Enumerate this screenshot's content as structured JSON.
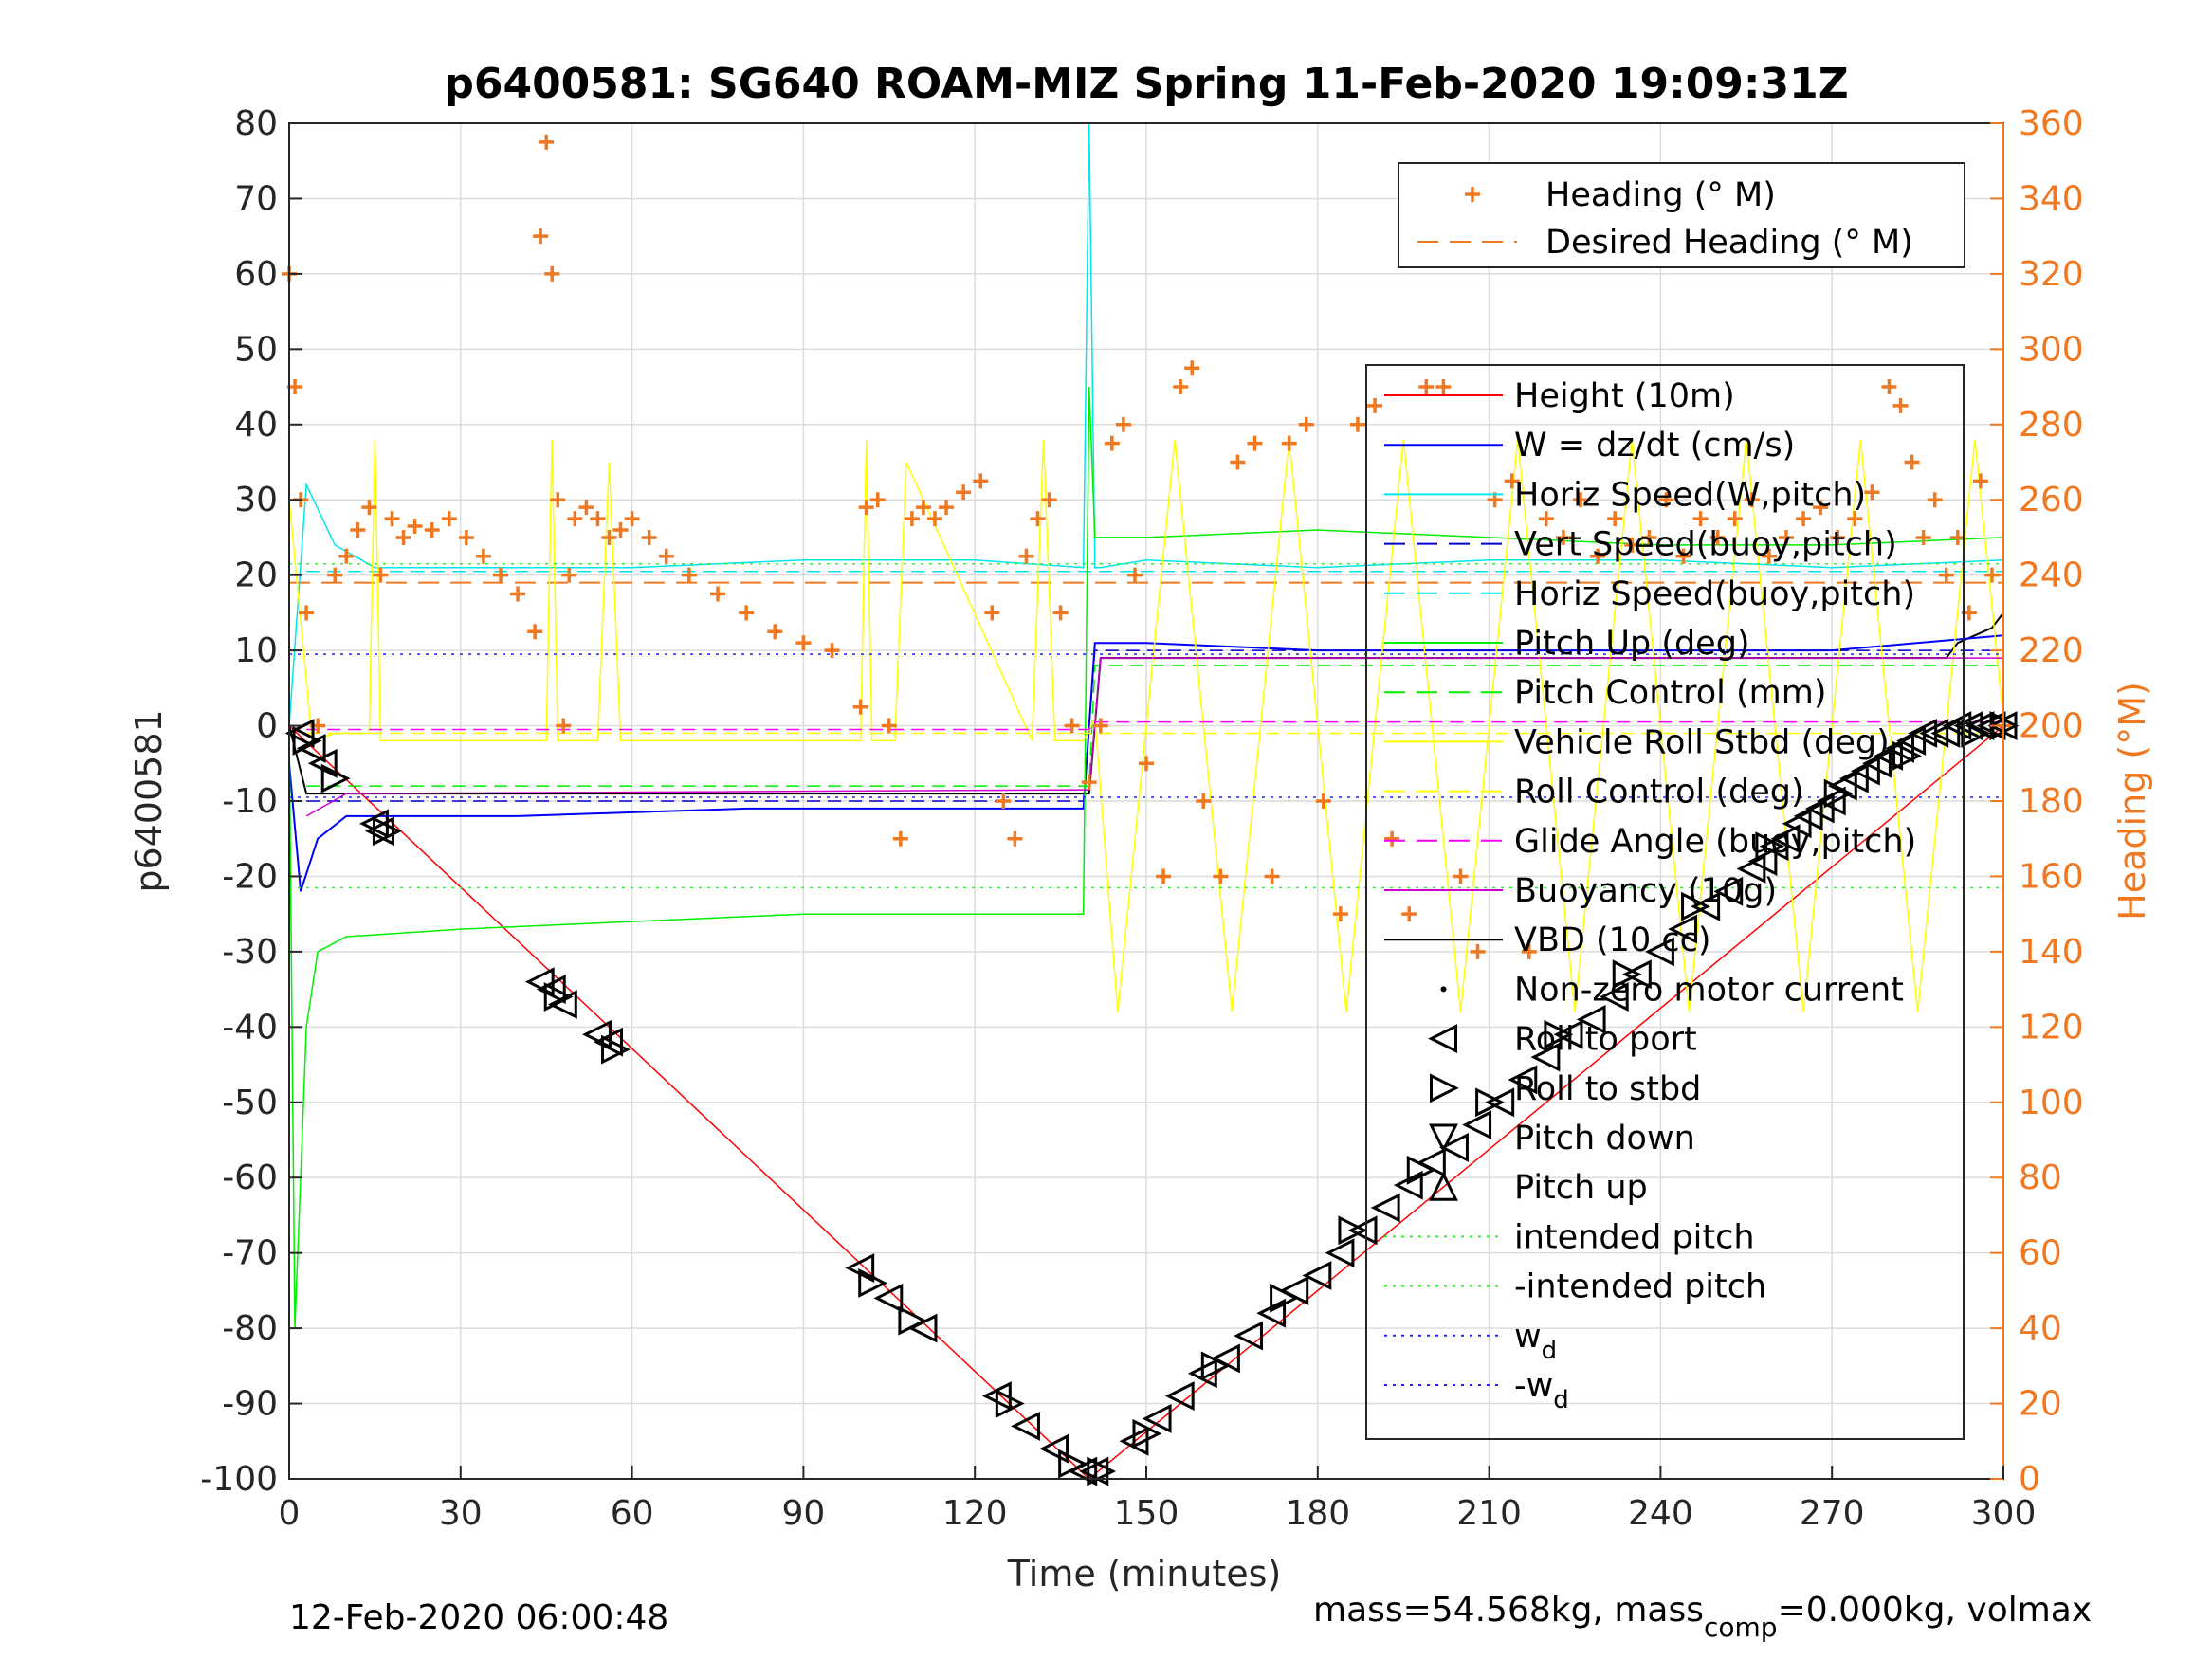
{
  "chart_data": {
    "type": "line",
    "title": "p6400581: SG640 ROAM-MIZ Spring 11-Feb-2020 19:09:31Z",
    "xlabel": "Time (minutes)",
    "ylabel_left": "p6400581",
    "ylabel_right": "Heading (°M)",
    "xlim": [
      0,
      300
    ],
    "ylim_left": [
      -100,
      80
    ],
    "ylim_right": [
      0,
      360
    ],
    "xticks": [
      0,
      30,
      60,
      90,
      120,
      150,
      180,
      210,
      240,
      270,
      300
    ],
    "yticks_left": [
      -100,
      -90,
      -80,
      -70,
      -60,
      -50,
      -40,
      -30,
      -20,
      -10,
      0,
      10,
      20,
      30,
      40,
      50,
      60,
      70,
      80
    ],
    "yticks_right": [
      0,
      20,
      40,
      60,
      80,
      100,
      120,
      140,
      160,
      180,
      200,
      220,
      240,
      260,
      280,
      300,
      320,
      340,
      360
    ],
    "grid": true,
    "footer_left": "12-Feb-2020 06:00:48",
    "footer_right_parts": [
      "mass=54.568kg, mass",
      "comp",
      "=0.000kg, volmax"
    ],
    "legend_heading": [
      {
        "name": "Heading (° M)",
        "color": "#f07820",
        "style": "plus"
      },
      {
        "name": "Desired Heading (° M)",
        "color": "#f07820",
        "style": "dash"
      }
    ],
    "legend_main": [
      {
        "name": "Height (10m)",
        "color": "#ff0000",
        "style": "line"
      },
      {
        "name": "W = dz/dt (cm/s)",
        "color": "#0000ff",
        "style": "line"
      },
      {
        "name": "Horiz Speed(W,pitch)",
        "color": "#00e5ee",
        "style": "line"
      },
      {
        "name": "Vert Speed(buoy,pitch)",
        "color": "#0000cc",
        "style": "dash"
      },
      {
        "name": "Horiz Speed(buoy,pitch)",
        "color": "#00e5ee",
        "style": "dash"
      },
      {
        "name": "Pitch Up (deg)",
        "color": "#00ee00",
        "style": "line"
      },
      {
        "name": "Pitch Control (mm)",
        "color": "#00ee00",
        "style": "dash"
      },
      {
        "name": "Vehicle Roll Stbd (deg)",
        "color": "#ffff00",
        "style": "line"
      },
      {
        "name": "Roll Control (deg)",
        "color": "#ffff00",
        "style": "dash"
      },
      {
        "name": "Glide Angle (buoy,pitch)",
        "color": "#ff00ff",
        "style": "dash"
      },
      {
        "name": "Buoyancy (10g)",
        "color": "#cc00cc",
        "style": "line"
      },
      {
        "name": "VBD (10 cc)",
        "color": "#000000",
        "style": "line"
      },
      {
        "name": "Non-zero motor current",
        "color": "#000000",
        "style": "dot"
      },
      {
        "name": "Roll to port",
        "color": "#000000",
        "style": "tri-left"
      },
      {
        "name": "Roll to stbd",
        "color": "#000000",
        "style": "tri-right"
      },
      {
        "name": "Pitch down",
        "color": "#000000",
        "style": "tri-down"
      },
      {
        "name": "Pitch up",
        "color": "#000000",
        "style": "tri-up"
      },
      {
        "name": "intended pitch",
        "color": "#33ee33",
        "style": "dot-line"
      },
      {
        "name": "-intended pitch",
        "color": "#33ee33",
        "style": "dot-line"
      },
      {
        "name": "w",
        "sub": "d",
        "color": "#2222ee",
        "style": "dot-line"
      },
      {
        "name": "-w",
        "sub": "d",
        "color": "#2222ee",
        "style": "dot-line"
      }
    ],
    "series": [
      {
        "name": "Height (10m)",
        "color": "#ff0000",
        "width": 1.5,
        "x": [
          0,
          140,
          300
        ],
        "y": [
          0,
          -100,
          0
        ]
      },
      {
        "name": "VBD (10 cc)",
        "color": "#000000",
        "width": 2,
        "x": [
          0,
          3,
          140,
          142,
          290,
          292,
          298,
          300
        ],
        "y": [
          0,
          -9,
          -9,
          9,
          9,
          11,
          13,
          15
        ]
      },
      {
        "name": "W = dz/dt (cm/s)",
        "color": "#0000ff",
        "width": 2,
        "x": [
          0,
          2,
          5,
          10,
          20,
          40,
          60,
          80,
          100,
          120,
          139,
          141,
          150,
          180,
          210,
          240,
          270,
          300
        ],
        "y": [
          -5,
          -22,
          -15,
          -12,
          -12,
          -12,
          -11.5,
          -11,
          -11,
          -11,
          -11,
          11,
          11,
          10,
          10,
          10,
          10,
          12
        ]
      },
      {
        "name": "Vert Speed(buoy,pitch)",
        "color": "#0000cc",
        "width": 1.5,
        "dash": "14,8",
        "x": [
          3,
          139,
          141,
          300
        ],
        "y": [
          -10,
          -10,
          10,
          10
        ]
      },
      {
        "name": "Horiz Speed(W,pitch)",
        "color": "#00e5ee",
        "width": 1.5,
        "x": [
          0,
          3,
          8,
          15,
          30,
          60,
          90,
          120,
          139,
          140,
          141,
          142,
          150,
          180,
          210,
          240,
          270,
          300
        ],
        "y": [
          0,
          32,
          24,
          21,
          21,
          21,
          22,
          22,
          21,
          80,
          21,
          21,
          22,
          21,
          22,
          22,
          21,
          22
        ]
      },
      {
        "name": "Horiz Speed(buoy,pitch)",
        "color": "#00e5ee",
        "width": 1.5,
        "dash": "14,8",
        "x": [
          3,
          300
        ],
        "y": [
          20.5,
          20.5
        ]
      },
      {
        "name": "Pitch Up (deg)",
        "color": "#00ee00",
        "width": 1.5,
        "x": [
          0,
          1,
          3,
          5,
          10,
          30,
          60,
          90,
          120,
          139,
          140,
          141,
          142,
          150,
          180,
          210,
          240,
          270,
          300
        ],
        "y": [
          0,
          -80,
          -40,
          -30,
          -28,
          -27,
          -26,
          -25,
          -25,
          -25,
          45,
          25,
          25,
          25,
          26,
          25,
          24,
          24,
          25
        ]
      },
      {
        "name": "Pitch Control (mm)",
        "color": "#00ee00",
        "width": 1.5,
        "dash": "14,8",
        "x": [
          3,
          140,
          141,
          300
        ],
        "y": [
          -8,
          -8,
          8,
          8
        ]
      },
      {
        "name": "Vehicle Roll Stbd (deg)",
        "color": "#ffff00",
        "width": 1.5,
        "x": [
          0,
          4,
          8,
          14,
          15,
          16,
          45,
          46,
          47,
          54,
          56,
          58,
          100,
          101,
          102,
          106,
          108,
          130,
          132,
          134,
          139,
          141,
          145,
          155,
          165,
          175,
          185,
          195,
          205,
          215,
          225,
          235,
          245,
          255,
          265,
          275,
          285,
          295,
          300
        ],
        "y": [
          30,
          -2,
          -1,
          -1,
          38,
          -2,
          -2,
          38,
          -2,
          -2,
          35,
          -2,
          -2,
          38,
          -2,
          -2,
          35,
          -2,
          38,
          -2,
          -2,
          1,
          -38,
          38,
          -38,
          38,
          -38,
          38,
          -38,
          38,
          -38,
          38,
          -38,
          38,
          -38,
          38,
          -38,
          38,
          1
        ]
      },
      {
        "name": "Roll Control (deg)",
        "color": "#ffff00",
        "width": 1.5,
        "dash": "14,8",
        "x": [
          3,
          300
        ],
        "y": [
          -1,
          -1
        ]
      },
      {
        "name": "Glide Angle (buoy,pitch)",
        "color": "#ff00ff",
        "width": 1.5,
        "dash": "14,8",
        "x": [
          3,
          140,
          141,
          300
        ],
        "y": [
          -0.5,
          -0.5,
          0.5,
          0.5
        ]
      },
      {
        "name": "Buoyancy (10g)",
        "color": "#cc00cc",
        "width": 1.5,
        "x": [
          3,
          10,
          140,
          142,
          300
        ],
        "y": [
          -12,
          -9,
          -8.5,
          9,
          9
        ]
      },
      {
        "name": "intended pitch",
        "color": "#33ee33",
        "width": 1.5,
        "dash": "3,6",
        "x": [
          0,
          300
        ],
        "y": [
          21.5,
          21.5
        ]
      },
      {
        "name": "-intended pitch",
        "color": "#33ee33",
        "width": 1.5,
        "dash": "3,6",
        "x": [
          0,
          300
        ],
        "y": [
          -21.5,
          -21.5
        ]
      },
      {
        "name": "w_d",
        "color": "#2222ee",
        "width": 1.5,
        "dash": "3,6",
        "x": [
          0,
          300
        ],
        "y": [
          9.5,
          9.5
        ]
      },
      {
        "name": "-w_d",
        "color": "#2222ee",
        "width": 1.5,
        "dash": "3,6",
        "x": [
          0,
          300
        ],
        "y": [
          -9.5,
          -9.5
        ]
      }
    ],
    "desired_heading_deg": 238,
    "heading_deg": {
      "x": [
        0,
        1,
        2,
        3,
        5,
        8,
        10,
        12,
        14,
        16,
        18,
        20,
        22,
        25,
        28,
        31,
        34,
        37,
        40,
        43,
        44,
        45,
        46,
        47,
        48,
        49,
        50,
        52,
        54,
        56,
        58,
        60,
        63,
        66,
        70,
        75,
        80,
        85,
        90,
        95,
        100,
        101,
        103,
        105,
        107,
        109,
        111,
        113,
        115,
        118,
        121,
        123,
        125,
        127,
        129,
        131,
        133,
        135,
        137,
        140,
        142,
        144,
        146,
        148,
        150,
        153,
        156,
        158,
        160,
        163,
        166,
        169,
        172,
        175,
        178,
        181,
        184,
        187,
        190,
        193,
        196,
        199,
        202,
        205,
        208,
        211,
        214,
        217,
        220,
        223,
        226,
        229,
        232,
        235,
        238,
        241,
        244,
        247,
        250,
        253,
        256,
        259,
        262,
        265,
        268,
        271,
        274,
        277,
        280,
        282,
        284,
        286,
        288,
        290,
        292,
        294,
        296,
        298,
        300
      ],
      "y": [
        320,
        290,
        260,
        230,
        200,
        240,
        245,
        252,
        258,
        240,
        255,
        250,
        253,
        252,
        255,
        250,
        245,
        240,
        235,
        225,
        330,
        355,
        320,
        260,
        200,
        240,
        255,
        258,
        255,
        250,
        252,
        255,
        250,
        245,
        240,
        235,
        230,
        225,
        222,
        220,
        205,
        258,
        260,
        200,
        170,
        255,
        258,
        255,
        258,
        262,
        265,
        230,
        180,
        170,
        245,
        255,
        260,
        230,
        200,
        185,
        200,
        275,
        280,
        240,
        190,
        160,
        290,
        295,
        180,
        160,
        270,
        275,
        160,
        275,
        280,
        180,
        150,
        280,
        285,
        170,
        150,
        290,
        290,
        160,
        140,
        260,
        265,
        140,
        255,
        250,
        260,
        245,
        255,
        248,
        250,
        260,
        245,
        255,
        250,
        255,
        260,
        245,
        250,
        255,
        258,
        250,
        255,
        262,
        290,
        285,
        270,
        250,
        260,
        240,
        250,
        230,
        265,
        240,
        200
      ]
    },
    "roll_port_markers": {
      "x": [
        2,
        4,
        6,
        15,
        16,
        44,
        46,
        48,
        54,
        56,
        100,
        105,
        111,
        124,
        129,
        134,
        139,
        141,
        148,
        152,
        156,
        160,
        164,
        168,
        172,
        176,
        180,
        184,
        188,
        192,
        196,
        200,
        204,
        208,
        212,
        216,
        220,
        224,
        228,
        232,
        236,
        240,
        244,
        248,
        252,
        256,
        258,
        260,
        262,
        264,
        266,
        268,
        270,
        272,
        274,
        276,
        278,
        280,
        282,
        284,
        286,
        288,
        290,
        292,
        294,
        296,
        298,
        300
      ],
      "y": [
        -1,
        -3,
        -5,
        -13,
        -14,
        -34,
        -35,
        -37,
        -41,
        -42,
        -72,
        -76,
        -80,
        -89,
        -93,
        -96,
        -99,
        -99,
        -95,
        -92,
        -89,
        -86,
        -84,
        -81,
        -78,
        -75,
        -73,
        -70,
        -67,
        -64,
        -61,
        -58,
        -56,
        -53,
        -50,
        -47,
        -44,
        -41,
        -39,
        -36,
        -33,
        -30,
        -27,
        -24,
        -22,
        -19,
        -18,
        -16,
        -15,
        -13,
        -12,
        -11,
        -10,
        -8,
        -7,
        -6,
        -5,
        -4,
        -3,
        -2,
        -1,
        -1,
        -1,
        0,
        0,
        0,
        0,
        0
      ]
    },
    "roll_stbd_markers": {
      "x": [
        3,
        8,
        17,
        47,
        57,
        102,
        109,
        126,
        137,
        142,
        150,
        162,
        174,
        186,
        198,
        210,
        222,
        234,
        246,
        259,
        271,
        283,
        295,
        300
      ],
      "y": [
        -2,
        -7,
        -14,
        -36,
        -43,
        -74,
        -79,
        -90,
        -98,
        -99,
        -94,
        -85,
        -76,
        -67,
        -59,
        -50,
        -41,
        -33,
        -24,
        -16,
        -9,
        -4,
        -1,
        0
      ]
    }
  }
}
